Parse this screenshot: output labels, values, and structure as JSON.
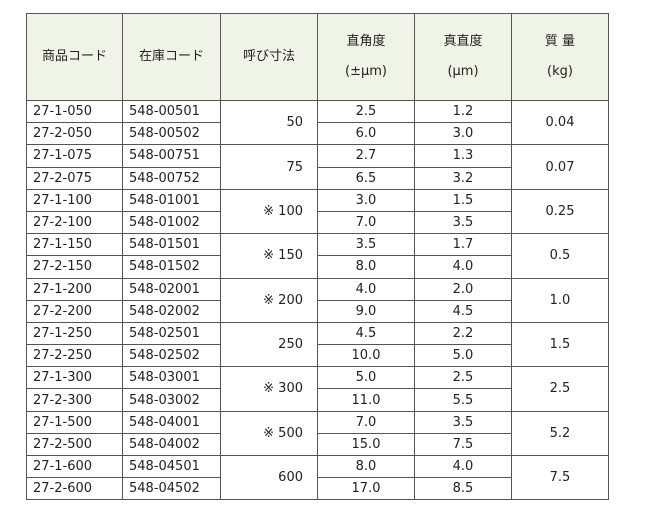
{
  "table": {
    "header": [
      [
        "商品コード"
      ],
      [
        "在庫コード"
      ],
      [
        "呼び寸法"
      ],
      [
        "直角度",
        "(±μm)"
      ],
      [
        "真直度",
        "(μm)"
      ],
      [
        "質 量",
        "(kg)"
      ]
    ],
    "groups": [
      {
        "size": "50",
        "mass": "0.04",
        "rows": [
          {
            "code": "27-1-050",
            "stock": "548-00501",
            "perp": "2.5",
            "straight": "1.2"
          },
          {
            "code": "27-2-050",
            "stock": "548-00502",
            "perp": "6.0",
            "straight": "3.0"
          }
        ]
      },
      {
        "size": "75",
        "mass": "0.07",
        "rows": [
          {
            "code": "27-1-075",
            "stock": "548-00751",
            "perp": "2.7",
            "straight": "1.3"
          },
          {
            "code": "27-2-075",
            "stock": "548-00752",
            "perp": "6.5",
            "straight": "3.2"
          }
        ]
      },
      {
        "size": "※ 100",
        "mass": "0.25",
        "rows": [
          {
            "code": "27-1-100",
            "stock": "548-01001",
            "perp": "3.0",
            "straight": "1.5"
          },
          {
            "code": "27-2-100",
            "stock": "548-01002",
            "perp": "7.0",
            "straight": "3.5"
          }
        ]
      },
      {
        "size": "※ 150",
        "mass": "0.5",
        "rows": [
          {
            "code": "27-1-150",
            "stock": "548-01501",
            "perp": "3.5",
            "straight": "1.7"
          },
          {
            "code": "27-2-150",
            "stock": "548-01502",
            "perp": "8.0",
            "straight": "4.0"
          }
        ]
      },
      {
        "size": "※ 200",
        "mass": "1.0",
        "rows": [
          {
            "code": "27-1-200",
            "stock": "548-02001",
            "perp": "4.0",
            "straight": "2.0"
          },
          {
            "code": "27-2-200",
            "stock": "548-02002",
            "perp": "9.0",
            "straight": "4.5"
          }
        ]
      },
      {
        "size": "250",
        "mass": "1.5",
        "rows": [
          {
            "code": "27-1-250",
            "stock": "548-02501",
            "perp": "4.5",
            "straight": "2.2"
          },
          {
            "code": "27-2-250",
            "stock": "548-02502",
            "perp": "10.0",
            "straight": "5.0"
          }
        ]
      },
      {
        "size": "※ 300",
        "mass": "2.5",
        "rows": [
          {
            "code": "27-1-300",
            "stock": "548-03001",
            "perp": "5.0",
            "straight": "2.5"
          },
          {
            "code": "27-2-300",
            "stock": "548-03002",
            "perp": "11.0",
            "straight": "5.5"
          }
        ]
      },
      {
        "size": "※ 500",
        "mass": "5.2",
        "rows": [
          {
            "code": "27-1-500",
            "stock": "548-04001",
            "perp": "7.0",
            "straight": "3.5"
          },
          {
            "code": "27-2-500",
            "stock": "548-04002",
            "perp": "15.0",
            "straight": "7.5"
          }
        ]
      },
      {
        "size": "600",
        "mass": "7.5",
        "rows": [
          {
            "code": "27-1-600",
            "stock": "548-04501",
            "perp": "8.0",
            "straight": "4.0"
          },
          {
            "code": "27-2-600",
            "stock": "548-04502",
            "perp": "17.0",
            "straight": "8.5"
          }
        ]
      }
    ]
  }
}
